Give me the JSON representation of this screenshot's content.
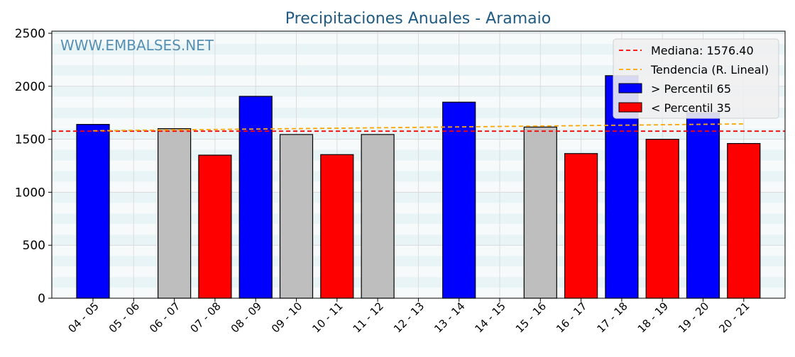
{
  "chart_data": {
    "type": "bar",
    "title": "Precipitaciones Anuales - Aramaio",
    "watermark": "WWW.EMBALSES.NET",
    "categories": [
      "04 - 05",
      "05 - 06",
      "06 - 07",
      "07 - 08",
      "08 - 09",
      "09 - 10",
      "10 - 11",
      "11 - 12",
      "12 - 13",
      "13 - 14",
      "14 - 15",
      "15 - 16",
      "16 - 17",
      "17 - 18",
      "18 - 19",
      "19 - 20",
      "20 - 21"
    ],
    "values": [
      1640,
      null,
      1600,
      1350,
      1905,
      1545,
      1355,
      1545,
      null,
      1850,
      null,
      1615,
      1365,
      2100,
      1500,
      1750,
      1460
    ],
    "bar_colors": [
      "#0000ff",
      null,
      "#bebebe",
      "#ff0000",
      "#0000ff",
      "#bebebe",
      "#ff0000",
      "#bebebe",
      null,
      "#0000ff",
      null,
      "#bebebe",
      "#ff0000",
      "#0000ff",
      "#ff0000",
      "#0000ff",
      "#ff0000"
    ],
    "ylim": [
      0,
      2520
    ],
    "yticks": [
      0,
      500,
      1000,
      1500,
      2000,
      2500
    ],
    "median": 1576.4,
    "trend": [
      1580,
      1645
    ],
    "grid": true,
    "legend": {
      "placement": "top-right",
      "entries": [
        {
          "label": "Mediana: 1576.40",
          "kind": "dashed",
          "color": "#ff0000"
        },
        {
          "label": "Tendencia (R. Lineal)",
          "kind": "dashed",
          "color": "#ffa500"
        },
        {
          "label": " > Percentil 65",
          "kind": "patch",
          "color": "#0000ff"
        },
        {
          "label": " < Percentil 35",
          "kind": "patch",
          "color": "#ff0000"
        }
      ]
    }
  }
}
